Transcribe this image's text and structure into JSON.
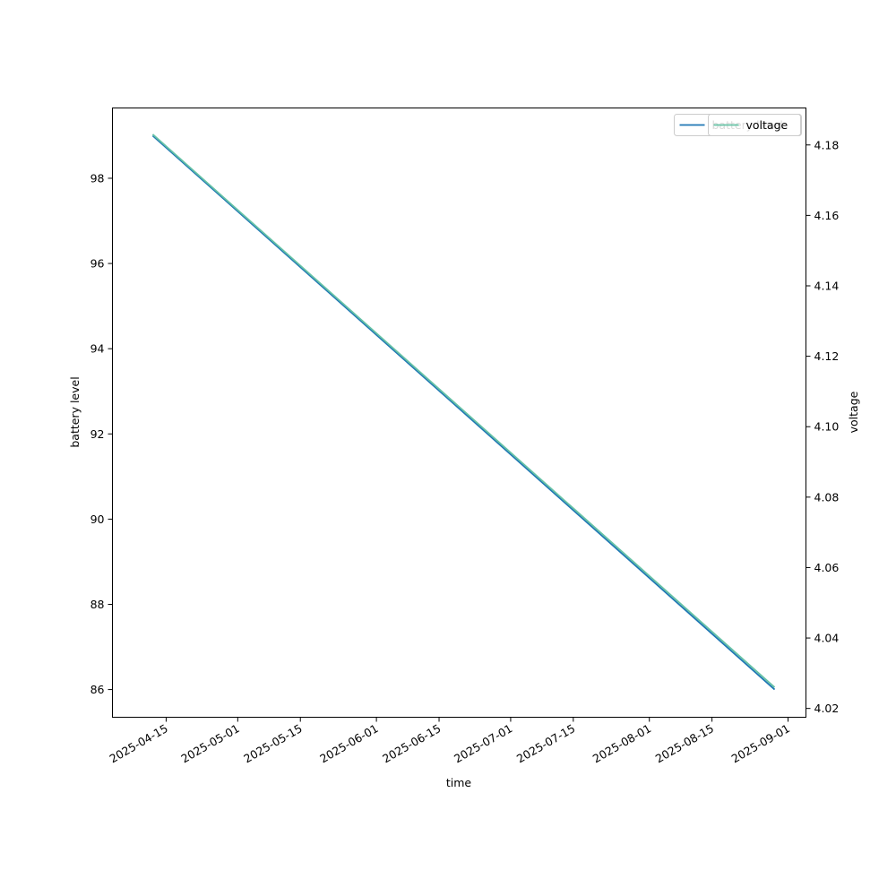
{
  "chart_data": {
    "type": "line",
    "xlabel": "time",
    "ylabel_left": "battery level",
    "ylabel_right": "voltage",
    "x_ticks": [
      "2025-04-15",
      "2025-05-01",
      "2025-05-15",
      "2025-06-01",
      "2025-06-15",
      "2025-07-01",
      "2025-07-15",
      "2025-08-01",
      "2025-08-15",
      "2025-09-01"
    ],
    "x_range": [
      "2025-04-03",
      "2025-09-05"
    ],
    "y_left_ticks": [
      86,
      88,
      90,
      92,
      94,
      96,
      98
    ],
    "y_left_range": [
      85.35,
      99.65
    ],
    "y_right_ticks": [
      4.02,
      4.04,
      4.06,
      4.08,
      4.1,
      4.12,
      4.14,
      4.16,
      4.18
    ],
    "y_right_range": [
      4.0175,
      4.1905
    ],
    "grid": false,
    "legend_placement": "top-right",
    "series": [
      {
        "name": "battery level",
        "axis": "left",
        "color": "#1f77b4",
        "points": [
          {
            "x": "2025-04-12",
            "y": 99
          },
          {
            "x": "2025-08-29",
            "y": 86
          }
        ]
      },
      {
        "name": "voltage",
        "axis": "right",
        "color": "#66c2a5",
        "points": [
          {
            "x": "2025-04-12",
            "y": 4.183
          },
          {
            "x": "2025-08-29",
            "y": 4.026
          }
        ]
      }
    ]
  }
}
